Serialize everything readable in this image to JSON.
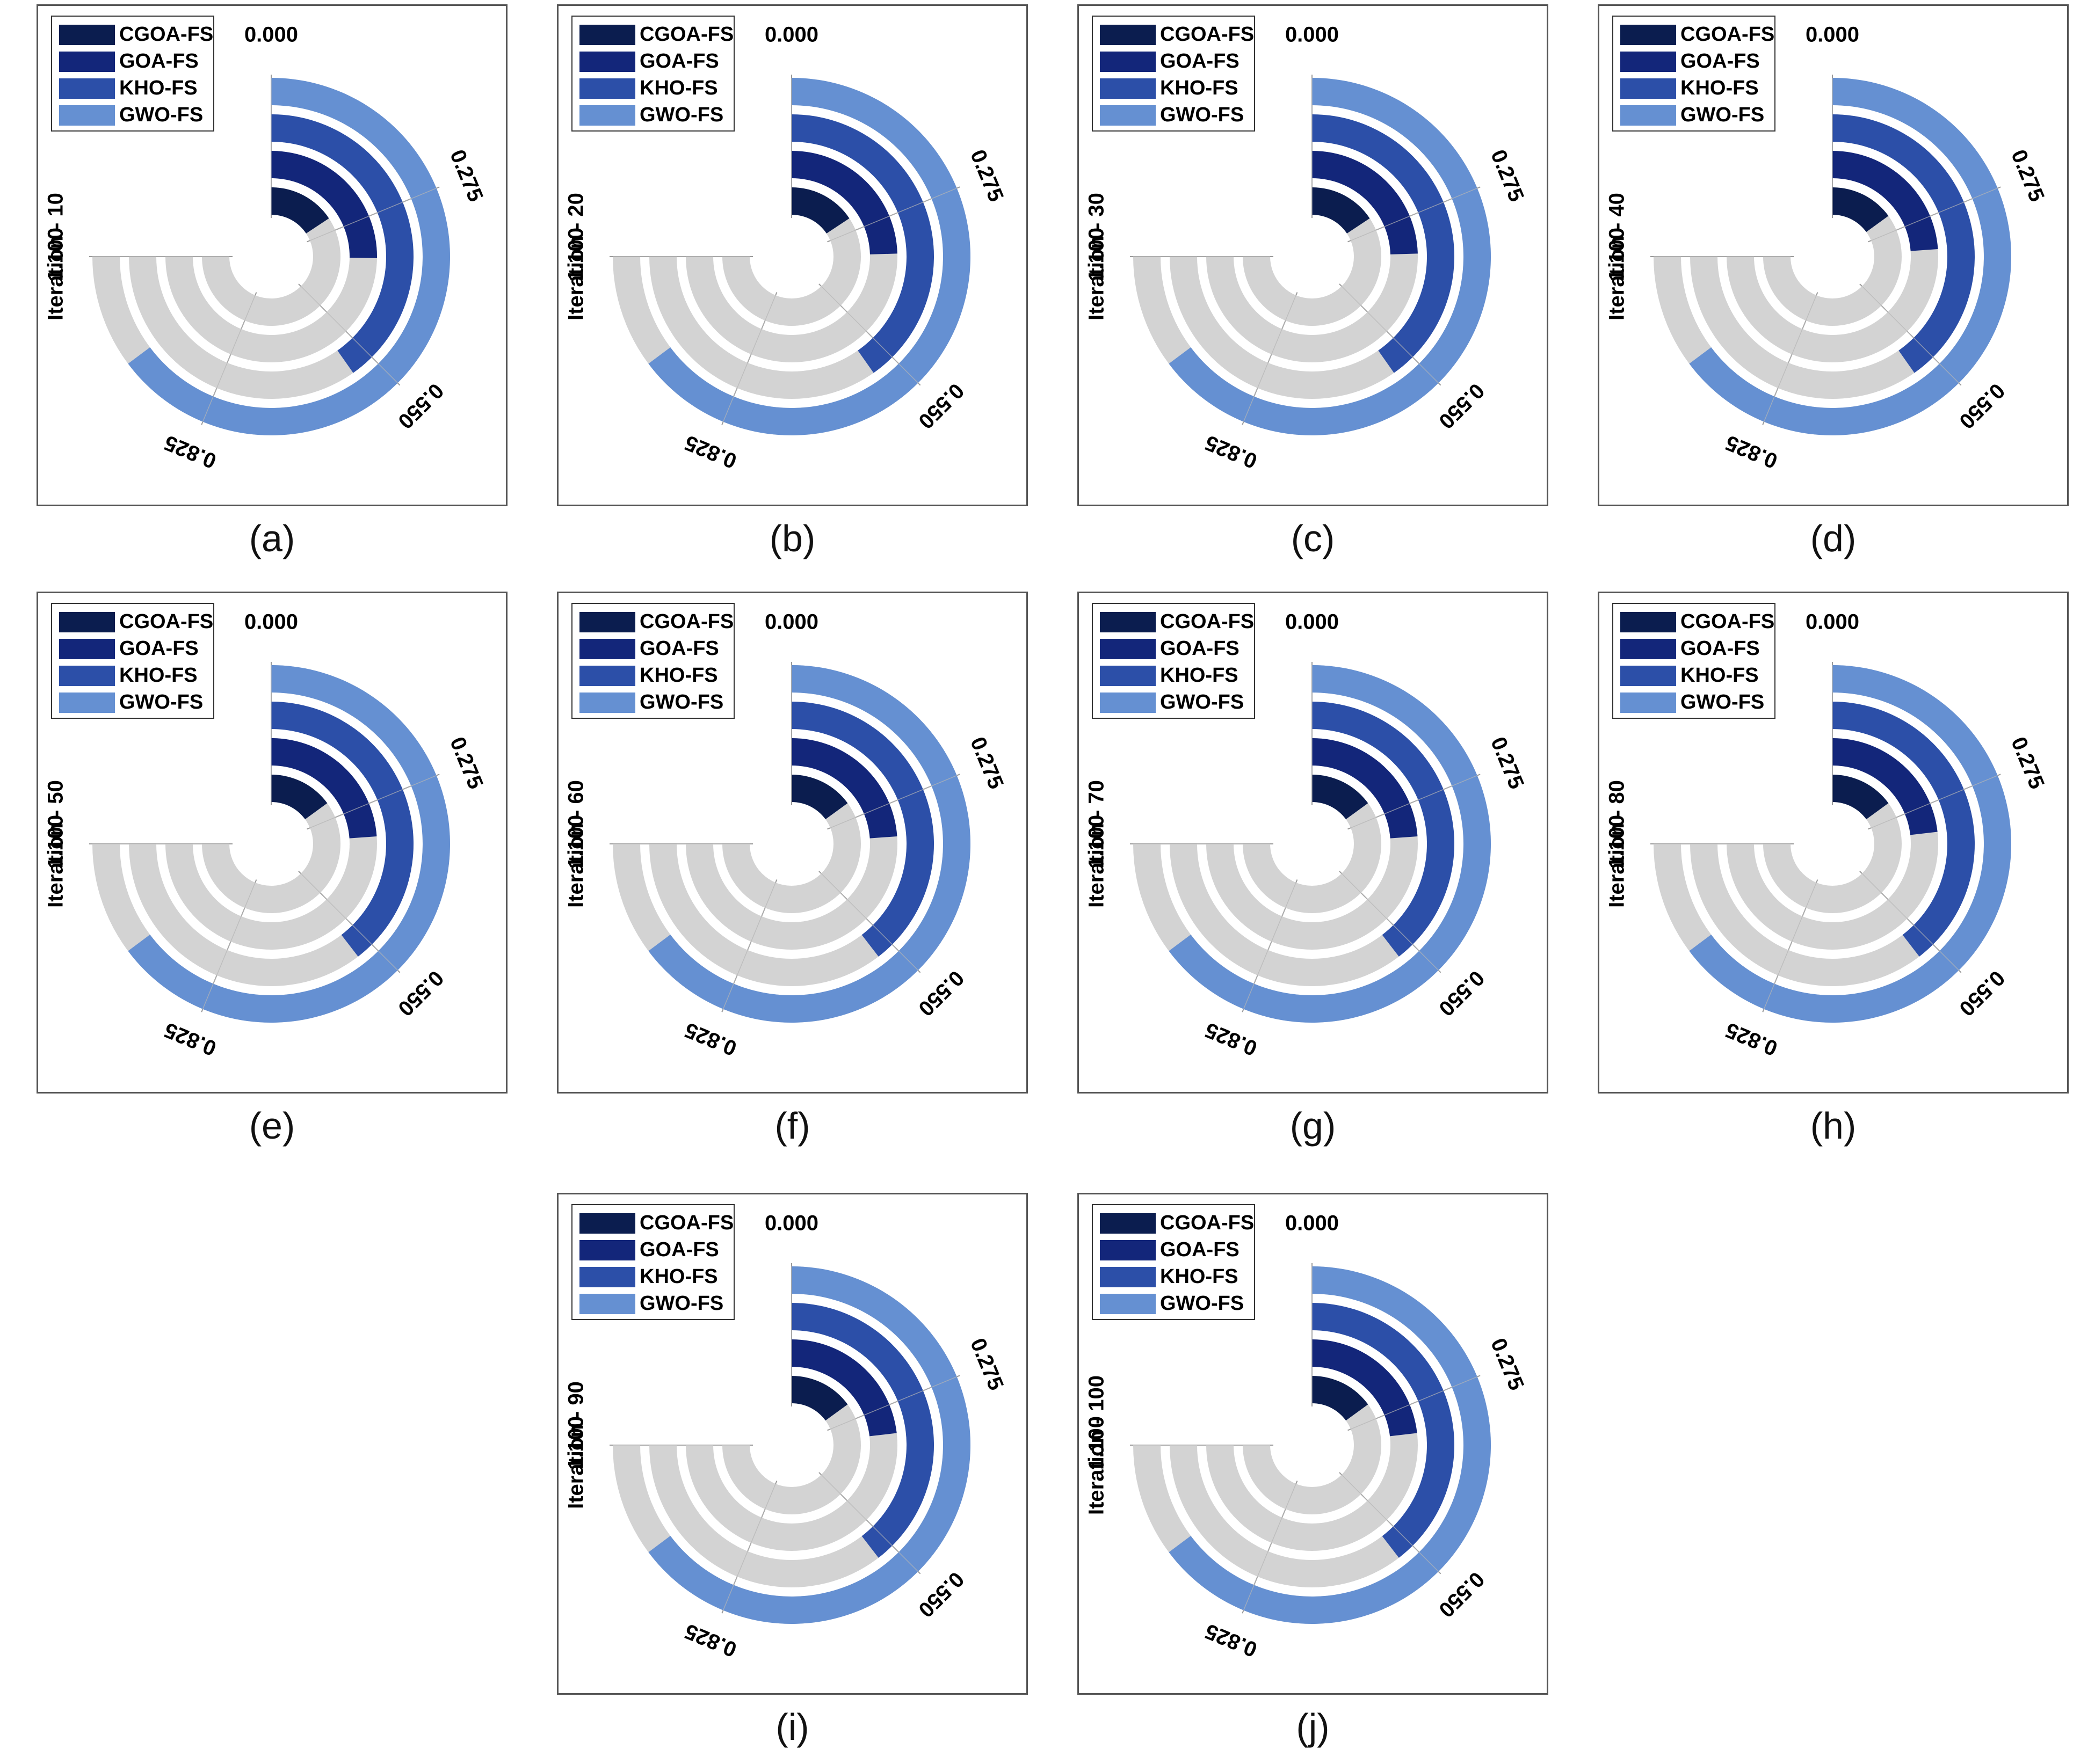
{
  "axis": {
    "ticks": [
      "0.000",
      "0.275",
      "0.550",
      "0.825",
      "1.100"
    ],
    "max": 1.1
  },
  "series": [
    {
      "name": "CGOA-FS",
      "color": "#0b1d4f"
    },
    {
      "name": "GOA-FS",
      "color": "#13267a"
    },
    {
      "name": "KHO-FS",
      "color": "#2c4fa8"
    },
    {
      "name": "GWO-FS",
      "color": "#6590d2"
    }
  ],
  "track_color": "#d3d3d3",
  "chart_data": [
    {
      "type": "radial-bar",
      "caption": "(a)",
      "ylabel": "Iteration - 10",
      "series": [
        {
          "name": "CGOA-FS",
          "value": 0.23
        },
        {
          "name": "GOA-FS",
          "value": 0.37
        },
        {
          "name": "KHO-FS",
          "value": 0.59
        },
        {
          "name": "GWO-FS",
          "value": 0.95
        }
      ]
    },
    {
      "type": "radial-bar",
      "caption": "(b)",
      "ylabel": "Iteration - 20",
      "series": [
        {
          "name": "CGOA-FS",
          "value": 0.23
        },
        {
          "name": "GOA-FS",
          "value": 0.36
        },
        {
          "name": "KHO-FS",
          "value": 0.59
        },
        {
          "name": "GWO-FS",
          "value": 0.95
        }
      ]
    },
    {
      "type": "radial-bar",
      "caption": "(c)",
      "ylabel": "Iteration - 30",
      "series": [
        {
          "name": "CGOA-FS",
          "value": 0.23
        },
        {
          "name": "GOA-FS",
          "value": 0.36
        },
        {
          "name": "KHO-FS",
          "value": 0.59
        },
        {
          "name": "GWO-FS",
          "value": 0.95
        }
      ]
    },
    {
      "type": "radial-bar",
      "caption": "(d)",
      "ylabel": "Iteration - 40",
      "series": [
        {
          "name": "CGOA-FS",
          "value": 0.22
        },
        {
          "name": "GOA-FS",
          "value": 0.35
        },
        {
          "name": "KHO-FS",
          "value": 0.59
        },
        {
          "name": "GWO-FS",
          "value": 0.95
        }
      ]
    },
    {
      "type": "radial-bar",
      "caption": "(e)",
      "ylabel": "Iteration - 50",
      "series": [
        {
          "name": "CGOA-FS",
          "value": 0.22
        },
        {
          "name": "GOA-FS",
          "value": 0.35
        },
        {
          "name": "KHO-FS",
          "value": 0.58
        },
        {
          "name": "GWO-FS",
          "value": 0.95
        }
      ]
    },
    {
      "type": "radial-bar",
      "caption": "(f)",
      "ylabel": "Iteration - 60",
      "series": [
        {
          "name": "CGOA-FS",
          "value": 0.22
        },
        {
          "name": "GOA-FS",
          "value": 0.35
        },
        {
          "name": "KHO-FS",
          "value": 0.58
        },
        {
          "name": "GWO-FS",
          "value": 0.95
        }
      ]
    },
    {
      "type": "radial-bar",
      "caption": "(g)",
      "ylabel": "Iteration - 70",
      "series": [
        {
          "name": "CGOA-FS",
          "value": 0.22
        },
        {
          "name": "GOA-FS",
          "value": 0.35
        },
        {
          "name": "KHO-FS",
          "value": 0.58
        },
        {
          "name": "GWO-FS",
          "value": 0.95
        }
      ]
    },
    {
      "type": "radial-bar",
      "caption": "(h)",
      "ylabel": "Iteration - 80",
      "series": [
        {
          "name": "CGOA-FS",
          "value": 0.22
        },
        {
          "name": "GOA-FS",
          "value": 0.34
        },
        {
          "name": "KHO-FS",
          "value": 0.58
        },
        {
          "name": "GWO-FS",
          "value": 0.95
        }
      ]
    },
    {
      "type": "radial-bar",
      "caption": "(i)",
      "ylabel": "Iteration - 90",
      "series": [
        {
          "name": "CGOA-FS",
          "value": 0.22
        },
        {
          "name": "GOA-FS",
          "value": 0.34
        },
        {
          "name": "KHO-FS",
          "value": 0.58
        },
        {
          "name": "GWO-FS",
          "value": 0.95
        }
      ]
    },
    {
      "type": "radial-bar",
      "caption": "(j)",
      "ylabel": "Iteration - 100",
      "series": [
        {
          "name": "CGOA-FS",
          "value": 0.22
        },
        {
          "name": "GOA-FS",
          "value": 0.34
        },
        {
          "name": "KHO-FS",
          "value": 0.58
        },
        {
          "name": "GWO-FS",
          "value": 0.95
        }
      ]
    }
  ]
}
